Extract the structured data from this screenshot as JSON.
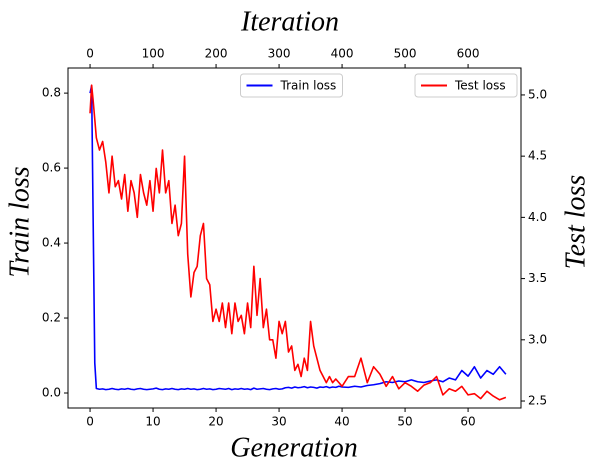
{
  "chart_data": {
    "type": "line",
    "xlabel": "Generation",
    "ylabel": "Train  loss",
    "y2label": "Test  loss",
    "x2label": "Iteration",
    "xlim": [
      -3.5,
      68.4
    ],
    "xticks": [
      0,
      10,
      20,
      30,
      40,
      50,
      60
    ],
    "x2lim": [
      -35,
      684
    ],
    "x2ticks": [
      0,
      100,
      200,
      300,
      400,
      500,
      600
    ],
    "ylim": [
      -0.04,
      0.867
    ],
    "yticks": [
      {
        "value": 0,
        "label": "0.0"
      },
      0.2,
      0.4,
      0.6,
      0.8
    ],
    "y2lim": [
      2.443,
      5.22
    ],
    "y2ticks": [
      2.5,
      {
        "value": 3,
        "label": "3.0"
      },
      3.5,
      {
        "value": 4,
        "label": "4.0"
      },
      4.5,
      {
        "value": 5,
        "label": "5.0"
      }
    ],
    "grid": false,
    "x": [
      0,
      0.25,
      0.5,
      0.75,
      1,
      1.5,
      2,
      2.5,
      3,
      3.5,
      4,
      4.5,
      5,
      5.5,
      6,
      6.5,
      7,
      7.5,
      8,
      8.5,
      9,
      9.5,
      10,
      10.5,
      11,
      11.5,
      12,
      12.5,
      13,
      13.5,
      14,
      14.5,
      15,
      15.5,
      16,
      16.5,
      17,
      17.5,
      18,
      18.5,
      19,
      19.5,
      20,
      20.5,
      21,
      21.5,
      22,
      22.5,
      23,
      23.5,
      24,
      24.5,
      25,
      25.5,
      26,
      26.5,
      27,
      27.5,
      28,
      28.5,
      29,
      29.5,
      30,
      30.5,
      31,
      31.5,
      32,
      32.5,
      33,
      33.5,
      34,
      34.5,
      35,
      35.5,
      36,
      36.5,
      37,
      37.5,
      38,
      38.5,
      39,
      39.5,
      40,
      41,
      42,
      43,
      44,
      45,
      46,
      47,
      48,
      49,
      50,
      51,
      52,
      53,
      54,
      55,
      56,
      57,
      58,
      59,
      60,
      61,
      62,
      63,
      64,
      65,
      66
    ],
    "series": [
      {
        "name": "Train loss",
        "color": "#0000ff",
        "legend_loc": "upper center",
        "values": [
          0.8,
          0.82,
          0.45,
          0.08,
          0.012,
          0.01,
          0.011,
          0.009,
          0.01,
          0.012,
          0.01,
          0.009,
          0.011,
          0.01,
          0.012,
          0.01,
          0.009,
          0.011,
          0.012,
          0.01,
          0.009,
          0.01,
          0.011,
          0.013,
          0.01,
          0.009,
          0.011,
          0.01,
          0.012,
          0.01,
          0.009,
          0.011,
          0.01,
          0.012,
          0.01,
          0.011,
          0.009,
          0.01,
          0.012,
          0.01,
          0.011,
          0.009,
          0.01,
          0.012,
          0.011,
          0.01,
          0.012,
          0.009,
          0.011,
          0.01,
          0.012,
          0.01,
          0.011,
          0.009,
          0.013,
          0.01,
          0.011,
          0.012,
          0.01,
          0.009,
          0.011,
          0.012,
          0.01,
          0.011,
          0.014,
          0.015,
          0.013,
          0.016,
          0.014,
          0.015,
          0.017,
          0.014,
          0.016,
          0.015,
          0.013,
          0.016,
          0.015,
          0.017,
          0.014,
          0.016,
          0.015,
          0.018,
          0.016,
          0.015,
          0.018,
          0.016,
          0.02,
          0.022,
          0.025,
          0.03,
          0.028,
          0.032,
          0.03,
          0.035,
          0.03,
          0.028,
          0.032,
          0.035,
          0.03,
          0.04,
          0.035,
          0.06,
          0.045,
          0.07,
          0.04,
          0.06,
          0.05,
          0.07,
          0.05
        ]
      },
      {
        "name": "Test loss",
        "color": "#ff0000",
        "axis": "y2",
        "legend_loc": "upper right",
        "values": [
          4.85,
          5.08,
          4.95,
          4.8,
          4.65,
          4.55,
          4.62,
          4.45,
          4.2,
          4.5,
          4.25,
          4.3,
          4.15,
          4.35,
          4.05,
          4.3,
          4.2,
          4.0,
          4.35,
          4.2,
          4.1,
          4.3,
          4.05,
          4.4,
          4.2,
          4.55,
          4.2,
          4.3,
          3.95,
          4.1,
          3.85,
          3.95,
          4.5,
          3.7,
          3.35,
          3.55,
          3.6,
          3.85,
          3.95,
          3.5,
          3.45,
          3.15,
          3.25,
          3.15,
          3.3,
          3.1,
          3.3,
          3.05,
          3.3,
          3.15,
          3.2,
          3.05,
          3.3,
          3.1,
          3.6,
          3.2,
          3.5,
          3.1,
          3.25,
          3.0,
          3.0,
          2.85,
          3.15,
          3.05,
          3.15,
          2.9,
          2.95,
          2.75,
          2.8,
          2.7,
          2.85,
          2.75,
          3.15,
          2.95,
          2.85,
          2.75,
          2.7,
          2.65,
          2.7,
          2.65,
          2.68,
          2.65,
          2.62,
          2.7,
          2.7,
          2.85,
          2.65,
          2.78,
          2.72,
          2.62,
          2.7,
          2.6,
          2.65,
          2.62,
          2.58,
          2.63,
          2.65,
          2.7,
          2.55,
          2.6,
          2.58,
          2.62,
          2.55,
          2.56,
          2.52,
          2.58,
          2.54,
          2.51,
          2.53
        ]
      }
    ]
  }
}
